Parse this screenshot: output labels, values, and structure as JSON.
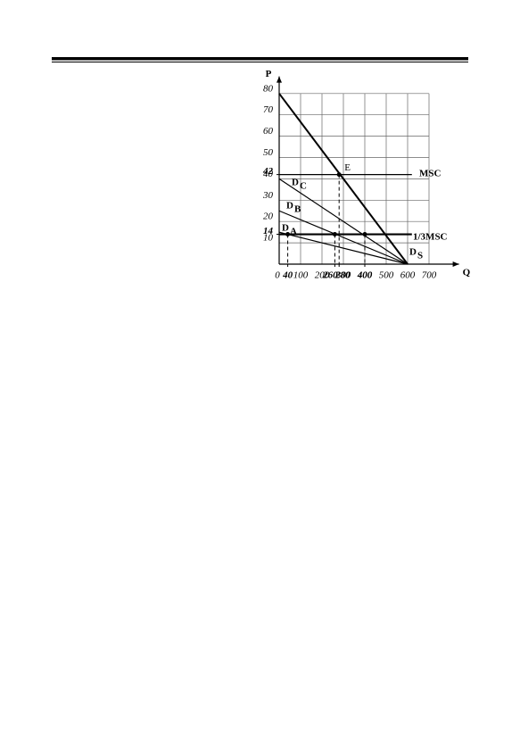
{
  "chart_data": {
    "type": "line",
    "ylabel": "P",
    "xlabel": "Q",
    "xlim": [
      0,
      840
    ],
    "ylim": [
      0,
      88
    ],
    "xticks": [
      0,
      100,
      200,
      300,
      400,
      500,
      600,
      700
    ],
    "yticks": [
      10,
      20,
      30,
      40,
      50,
      60,
      70,
      80
    ],
    "xticks_marked": [
      40,
      260,
      280,
      400
    ],
    "yticks_marked": [
      14,
      42
    ],
    "grid": true,
    "series": [
      {
        "label": "D",
        "subscript": "S",
        "x": [
          0,
          600
        ],
        "values": [
          80,
          0
        ],
        "color": "#000000"
      },
      {
        "label": "D",
        "subscript": "C",
        "x": [
          0,
          600
        ],
        "values": [
          40,
          0
        ],
        "color": "#000000"
      },
      {
        "label": "D",
        "subscript": "B",
        "x": [
          0,
          600
        ],
        "values": [
          25,
          0
        ],
        "color": "#000000"
      },
      {
        "label": "D",
        "subscript": "A",
        "x": [
          0,
          600
        ],
        "values": [
          15,
          0
        ],
        "color": "#000000"
      },
      {
        "label": "MSC",
        "x": [
          0,
          620
        ],
        "values": [
          42,
          42
        ],
        "color": "#000000"
      },
      {
        "label": "1/3MSC",
        "x": [
          0,
          620
        ],
        "values": [
          14,
          14
        ],
        "color": "#000000"
      }
    ],
    "points": [
      {
        "x": 40,
        "y": 14
      },
      {
        "x": 260,
        "y": 14
      },
      {
        "x": 400,
        "y": 14
      },
      {
        "x": 280,
        "y": 42,
        "label": "E"
      }
    ]
  }
}
